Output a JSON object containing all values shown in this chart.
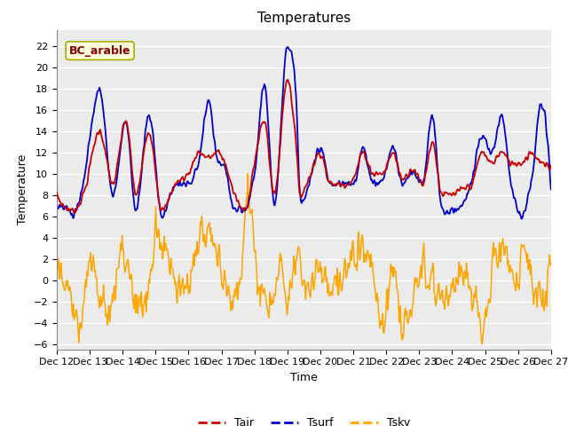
{
  "title": "Temperatures",
  "xlabel": "Time",
  "ylabel": "Temperature",
  "ylim": [
    -6.5,
    23.5
  ],
  "yticks": [
    -6,
    -4,
    -2,
    0,
    2,
    4,
    6,
    8,
    10,
    12,
    14,
    16,
    18,
    20,
    22
  ],
  "xtick_labels": [
    "Dec 12",
    "Dec 13",
    "Dec 14",
    "Dec 15",
    "Dec 16",
    "Dec 17",
    "Dec 18",
    "Dec 19",
    "Dec 20",
    "Dec 21",
    "Dec 22",
    "Dec 23",
    "Dec 24",
    "Dec 25",
    "Dec 26",
    "Dec 27"
  ],
  "annotation": "BC_arable",
  "annotation_color": "#8B0000",
  "annotation_bg": "#FFFFDD",
  "line_colors": {
    "Tair": "#CC0000",
    "Tsurf": "#0000CC",
    "Tsky": "#FFA500"
  },
  "bg_color": "#EBEBEB",
  "title_fontsize": 11,
  "tick_fontsize": 8,
  "label_fontsize": 9
}
